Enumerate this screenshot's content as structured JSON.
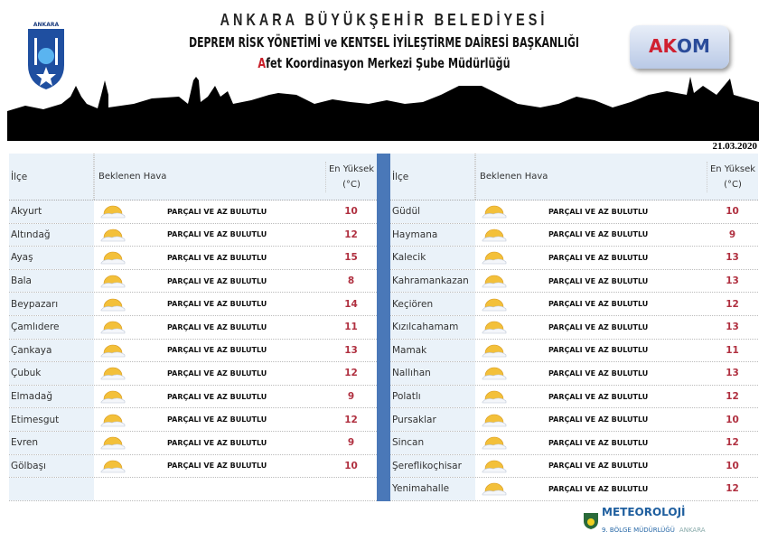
{
  "header": {
    "title1": "ANKARA BÜYÜKŞEHİR BELEDİYESİ",
    "title2": "DEPREM RİSK YÖNETİMİ ve KENTSEL İYİLEŞTİRME DAİRESİ BAŞKANLIĞI",
    "title3_first": "A",
    "title3_rest": "fet Koordinasyon Merkezi Şube Müdürlüğü",
    "logo_text": "ANKARA",
    "akom": {
      "a": "AK",
      "rest": "OM"
    }
  },
  "date": "21.03.2020",
  "columns": {
    "district": "İlçe",
    "weather": "Beklenen Hava",
    "max_temp": "En Yüksek (°C)"
  },
  "left": [
    {
      "name": "Akyurt",
      "weather": "PARÇALI VE AZ BULUTLU",
      "temp": "10"
    },
    {
      "name": "Altındağ",
      "weather": "PARÇALI VE AZ BULUTLU",
      "temp": "12"
    },
    {
      "name": "Ayaş",
      "weather": "PARÇALI VE AZ BULUTLU",
      "temp": "15"
    },
    {
      "name": "Bala",
      "weather": "PARÇALI VE AZ BULUTLU",
      "temp": "8"
    },
    {
      "name": "Beypazarı",
      "weather": "PARÇALI VE AZ BULUTLU",
      "temp": "14"
    },
    {
      "name": "Çamlıdere",
      "weather": "PARÇALI VE AZ BULUTLU",
      "temp": "11"
    },
    {
      "name": "Çankaya",
      "weather": "PARÇALI VE AZ BULUTLU",
      "temp": "13"
    },
    {
      "name": "Çubuk",
      "weather": "PARÇALI VE AZ BULUTLU",
      "temp": "12"
    },
    {
      "name": "Elmadağ",
      "weather": "PARÇALI VE AZ BULUTLU",
      "temp": "9"
    },
    {
      "name": "Etimesgut",
      "weather": "PARÇALI VE AZ BULUTLU",
      "temp": "12"
    },
    {
      "name": "Evren",
      "weather": "PARÇALI VE AZ BULUTLU",
      "temp": "9"
    },
    {
      "name": "Gölbaşı",
      "weather": "PARÇALI VE AZ BULUTLU",
      "temp": "10"
    }
  ],
  "right": [
    {
      "name": "Güdül",
      "weather": "PARÇALI VE AZ BULUTLU",
      "temp": "10"
    },
    {
      "name": "Haymana",
      "weather": "PARÇALI VE AZ BULUTLU",
      "temp": "9"
    },
    {
      "name": "Kalecik",
      "weather": "PARÇALI VE AZ BULUTLU",
      "temp": "13"
    },
    {
      "name": "Kahramankazan",
      "weather": "PARÇALI VE AZ BULUTLU",
      "temp": "13"
    },
    {
      "name": "Keçiören",
      "weather": "PARÇALI VE AZ BULUTLU",
      "temp": "12"
    },
    {
      "name": "Kızılcahamam",
      "weather": "PARÇALI VE AZ BULUTLU",
      "temp": "13"
    },
    {
      "name": "Mamak",
      "weather": "PARÇALI VE AZ BULUTLU",
      "temp": "11"
    },
    {
      "name": "Nallıhan",
      "weather": "PARÇALI VE AZ BULUTLU",
      "temp": "13"
    },
    {
      "name": "Polatlı",
      "weather": "PARÇALI VE AZ BULUTLU",
      "temp": "12"
    },
    {
      "name": "Pursaklar",
      "weather": "PARÇALI VE AZ BULUTLU",
      "temp": "10"
    },
    {
      "name": "Sincan",
      "weather": "PARÇALI VE AZ BULUTLU",
      "temp": "12"
    },
    {
      "name": "Şereflikoçhisar",
      "weather": "PARÇALI VE AZ BULUTLU",
      "temp": "10"
    },
    {
      "name": "Yenimahalle",
      "weather": "PARÇALI VE AZ BULUTLU",
      "temp": "12"
    }
  ],
  "icon": "partly-cloudy-icon",
  "footer": {
    "meteo": "METEOROLOJİ",
    "region": "9. BÖLGE MÜDÜRLÜĞÜ",
    "city": "ANKARA"
  }
}
